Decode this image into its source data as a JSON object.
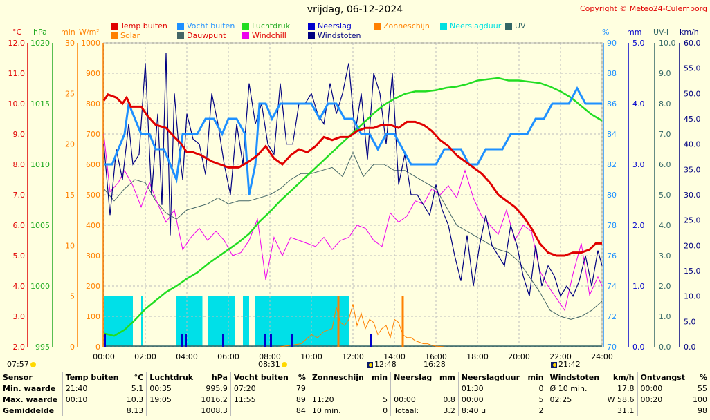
{
  "title": "vrijdag, 06-12-2024",
  "copyright": "Copyright © Meteo24-Culemborg",
  "units": {
    "celsius": "°C",
    "hpa": "hPa",
    "min": "min",
    "wm2": "W/m²",
    "pct": "%",
    "mm": "mm",
    "uvi": "UV-I",
    "kmh": "km/h"
  },
  "legend": [
    {
      "label": "Temp buiten",
      "color": "#e00000"
    },
    {
      "label": "Vocht buiten",
      "color": "#1e90ff"
    },
    {
      "label": "Luchtdruk",
      "color": "#22dd22"
    },
    {
      "label": "Neerslag",
      "color": "#0000cc"
    },
    {
      "label": "Zonneschijn",
      "color": "#ff8000"
    },
    {
      "label": "Neerslagduur",
      "color": "#00e0e0"
    },
    {
      "label": "UV",
      "color": "#336666"
    },
    {
      "label": "Solar",
      "color": "#ff8000"
    },
    {
      "label": "Dauwpunt",
      "color": "#446666"
    },
    {
      "label": "Windchill",
      "color": "#ee00ee"
    },
    {
      "label": "Windstoten",
      "color": "#000080"
    }
  ],
  "sun": {
    "sunrise": "08:31",
    "sunset": "16:28",
    "moonrise": "12:48",
    "moonset": "21:42",
    "dawn": "07:57"
  },
  "chart_data": {
    "type": "line",
    "x_label": "time",
    "x_ticks": [
      "00:00",
      "02:00",
      "04:00",
      "06:00",
      "08:00",
      "10:00",
      "12:00",
      "14:00",
      "16:00",
      "18:00",
      "20:00",
      "22:00",
      "24:00"
    ],
    "axes": {
      "temp": {
        "ticks": [
          "12.0",
          "11.0",
          "10.0",
          "9.0",
          "8.0",
          "7.0",
          "6.0",
          "5.0",
          "4.0",
          "3.0",
          "2.0"
        ],
        "range": [
          2,
          12
        ]
      },
      "pressure": {
        "ticks": [
          "1020",
          "1015",
          "1010",
          "1005",
          "1000",
          "995"
        ],
        "range": [
          995,
          1020
        ]
      },
      "minutes": {
        "ticks": [
          "30",
          "25",
          "20",
          "15",
          "10",
          "5",
          "0"
        ],
        "range": [
          0,
          30
        ]
      },
      "solar": {
        "ticks": [
          "1000",
          "900",
          "800",
          "700",
          "600",
          "500",
          "400",
          "300",
          "200",
          "100",
          "0"
        ],
        "range": [
          0,
          1000
        ]
      },
      "humidity": {
        "ticks": [
          "90",
          "88",
          "86",
          "84",
          "82",
          "80",
          "78",
          "76",
          "74",
          "72",
          "70"
        ],
        "range": [
          70,
          90
        ]
      },
      "rain_mm": {
        "ticks": [
          "5.0",
          "4.0",
          "3.0",
          "2.0",
          "1.0",
          "0.0"
        ],
        "range": [
          0,
          5
        ]
      },
      "uvi": {
        "ticks": [
          "10.0",
          "9.0",
          "8.0",
          "7.0",
          "6.0",
          "5.0",
          "4.0",
          "3.0",
          "2.0",
          "1.0",
          "0.0"
        ],
        "range": [
          0,
          10
        ]
      },
      "wind": {
        "ticks": [
          "60.0",
          "55.0",
          "50.0",
          "45.0",
          "40.0",
          "35.0",
          "30.0",
          "25.0",
          "20.0",
          "15.0",
          "10.0",
          "5.0",
          "0.0"
        ],
        "range": [
          0,
          60
        ]
      }
    },
    "series": [
      {
        "name": "Temp buiten",
        "axis": "temp",
        "color": "#e00000",
        "x": [
          0,
          0.2,
          0.6,
          0.9,
          1.1,
          1.3,
          1.8,
          2.1,
          2.5,
          3,
          3.4,
          3.7,
          4,
          4.3,
          4.7,
          5.2,
          5.6,
          6,
          6.5,
          7,
          7.4,
          7.8,
          8.2,
          8.6,
          9,
          9.4,
          9.8,
          10.2,
          10.6,
          11,
          11.4,
          11.8,
          12.2,
          12.6,
          13,
          13.4,
          13.8,
          14.2,
          14.6,
          15,
          15.4,
          15.8,
          16.2,
          16.6,
          17,
          17.4,
          17.8,
          18.2,
          18.6,
          19,
          19.4,
          19.8,
          20.2,
          20.6,
          21,
          21.4,
          21.8,
          22.2,
          22.6,
          23,
          23.4,
          23.7,
          24
        ],
        "y": [
          10.1,
          10.3,
          10.2,
          10.0,
          10.2,
          9.9,
          9.9,
          9.6,
          9.3,
          9.2,
          8.9,
          8.7,
          8.4,
          8.4,
          8.3,
          8.1,
          8.0,
          7.9,
          7.9,
          8.1,
          8.3,
          8.6,
          8.2,
          8.0,
          8.3,
          8.5,
          8.4,
          8.6,
          8.9,
          8.8,
          8.9,
          8.9,
          9.1,
          9.2,
          9.2,
          9.3,
          9.3,
          9.2,
          9.4,
          9.4,
          9.3,
          9.1,
          8.8,
          8.6,
          8.3,
          8.1,
          7.9,
          7.7,
          7.4,
          7.0,
          6.8,
          6.6,
          6.3,
          5.9,
          5.4,
          5.1,
          5.0,
          5.0,
          5.1,
          5.1,
          5.2,
          5.4,
          5.4
        ]
      },
      {
        "name": "Vocht buiten",
        "axis": "humidity",
        "color": "#1e90ff",
        "x": [
          0,
          0.4,
          0.7,
          1.0,
          1.2,
          1.5,
          1.8,
          2.2,
          2.5,
          2.9,
          3.2,
          3.5,
          3.8,
          4.1,
          4.5,
          4.9,
          5.3,
          5.7,
          6.0,
          6.4,
          6.8,
          7.0,
          7.3,
          7.5,
          7.8,
          8.1,
          8.5,
          8.8,
          9.2,
          9.6,
          10,
          10.4,
          10.8,
          11.2,
          11.6,
          12,
          12.4,
          12.8,
          13.2,
          13.6,
          14,
          14.4,
          14.8,
          15.2,
          15.6,
          16,
          16.4,
          16.8,
          17.2,
          17.6,
          18,
          18.4,
          18.8,
          19.2,
          19.6,
          20,
          20.4,
          20.8,
          21.2,
          21.6,
          22,
          22.4,
          22.8,
          23.2,
          23.6,
          24
        ],
        "y": [
          82,
          82,
          83,
          84,
          86,
          85,
          84,
          84,
          83,
          83,
          82,
          81,
          84,
          84,
          84,
          85,
          85,
          84,
          85,
          85,
          84,
          80,
          82,
          86,
          86,
          85,
          86,
          86,
          86,
          86,
          86,
          85,
          86,
          86,
          85,
          85,
          84,
          84,
          83,
          84,
          84,
          83,
          82,
          82,
          82,
          82,
          83,
          83,
          83,
          82,
          82,
          83,
          83,
          83,
          84,
          84,
          84,
          85,
          85,
          86,
          86,
          86,
          87,
          86,
          86,
          86
        ]
      },
      {
        "name": "Luchtdruk",
        "axis": "pressure",
        "color": "#22dd22",
        "x": [
          0,
          0.5,
          1,
          1.5,
          2,
          2.5,
          3,
          3.5,
          4,
          4.5,
          5,
          5.5,
          6,
          6.5,
          7,
          7.5,
          8,
          8.5,
          9,
          9.5,
          10,
          10.5,
          11,
          11.5,
          12,
          12.5,
          13,
          13.5,
          14,
          14.5,
          15,
          15.5,
          16,
          16.5,
          17,
          17.5,
          18,
          18.5,
          19,
          19.5,
          20,
          20.5,
          21,
          21.5,
          22,
          22.5,
          23,
          23.5,
          24
        ],
        "y": [
          996.1,
          995.9,
          996.4,
          997.2,
          998.1,
          998.8,
          999.5,
          1000,
          1000.6,
          1001.1,
          1001.8,
          1002.4,
          1003.0,
          1003.6,
          1004.3,
          1005.3,
          1006.1,
          1007.0,
          1007.8,
          1008.6,
          1009.4,
          1010.2,
          1011,
          1011.8,
          1012.6,
          1013.4,
          1014.2,
          1014.9,
          1015.4,
          1015.8,
          1016.0,
          1016.0,
          1016.1,
          1016.3,
          1016.4,
          1016.6,
          1016.9,
          1017.0,
          1017.1,
          1016.9,
          1016.9,
          1016.8,
          1016.7,
          1016.4,
          1016,
          1015.5,
          1014.8,
          1014.1,
          1013.6
        ]
      },
      {
        "name": "Dauwpunt",
        "axis": "temp",
        "color": "#446666",
        "x": [
          0,
          0.5,
          1,
          1.5,
          2,
          2.5,
          3,
          3.5,
          4,
          4.5,
          5,
          5.5,
          6,
          6.5,
          7,
          7.5,
          8,
          8.5,
          9,
          9.5,
          10,
          10.5,
          11,
          11.5,
          12,
          12.5,
          13,
          13.5,
          14,
          14.5,
          15,
          15.5,
          16,
          16.5,
          17,
          17.5,
          18,
          18.5,
          19,
          19.5,
          20,
          20.5,
          21,
          21.5,
          22,
          22.5,
          23,
          23.5,
          24
        ],
        "y": [
          7.2,
          6.8,
          7.2,
          7.5,
          7.4,
          6.8,
          6.4,
          6.2,
          6.5,
          6.6,
          6.7,
          6.9,
          6.7,
          6.8,
          6.8,
          6.9,
          7.0,
          7.2,
          7.5,
          7.7,
          7.7,
          7.8,
          7.9,
          7.6,
          8.4,
          7.6,
          8.0,
          8.0,
          7.8,
          7.8,
          7.6,
          7.4,
          7.2,
          6.6,
          6.0,
          5.8,
          5.6,
          5.4,
          5.2,
          5.1,
          4.8,
          4.3,
          3.8,
          3.2,
          3.0,
          2.9,
          3.0,
          3.2,
          3.5
        ]
      },
      {
        "name": "Windchill",
        "axis": "temp",
        "color": "#ee00ee",
        "x": [
          0,
          0.3,
          0.7,
          1,
          1.4,
          1.8,
          2.2,
          2.6,
          3,
          3.4,
          3.8,
          4.2,
          4.6,
          5,
          5.4,
          5.8,
          6.2,
          6.6,
          7,
          7.4,
          7.8,
          8.2,
          8.6,
          9,
          9.4,
          9.8,
          10.2,
          10.6,
          11,
          11.4,
          11.8,
          12.2,
          12.6,
          13,
          13.4,
          13.8,
          14.2,
          14.6,
          15,
          15.4,
          15.8,
          16.2,
          16.6,
          17,
          17.4,
          17.8,
          18.2,
          18.6,
          19,
          19.4,
          19.8,
          20.2,
          20.6,
          21,
          21.4,
          21.8,
          22.2,
          22.6,
          23,
          23.4,
          23.8,
          24
        ],
        "y": [
          9.0,
          7.1,
          7.4,
          7.8,
          7.3,
          6.6,
          7.4,
          6.7,
          6.1,
          6.5,
          5.2,
          5.6,
          5.9,
          5.5,
          5.8,
          5.5,
          5.0,
          5.1,
          5.5,
          6.2,
          4.2,
          5.6,
          5.0,
          5.6,
          5.5,
          5.4,
          5.3,
          5.6,
          5.2,
          5.5,
          5.6,
          6.0,
          5.9,
          5.5,
          5.3,
          6.4,
          6.1,
          6.3,
          6.8,
          6.7,
          7.2,
          7.0,
          7.3,
          6.9,
          7.8,
          6.9,
          6.3,
          6.0,
          5.7,
          6.5,
          5.5,
          6.0,
          5.8,
          4.5,
          4.0,
          3.6,
          3.2,
          4.4,
          5.4,
          3.7,
          4.3,
          4.0
        ]
      },
      {
        "name": "Windstoten",
        "axis": "wind",
        "color": "#000080",
        "x": [
          0,
          0.3,
          0.6,
          0.9,
          1.2,
          1.4,
          1.7,
          2.0,
          2.3,
          2.6,
          2.8,
          3.0,
          3.2,
          3.4,
          3.6,
          3.8,
          4.0,
          4.3,
          4.6,
          4.9,
          5.2,
          5.5,
          5.8,
          6.1,
          6.4,
          6.7,
          7.0,
          7.3,
          7.6,
          7.9,
          8.2,
          8.5,
          8.8,
          9.1,
          9.4,
          9.7,
          10,
          10.3,
          10.6,
          10.9,
          11.2,
          11.5,
          11.8,
          12.1,
          12.4,
          12.7,
          13,
          13.3,
          13.6,
          13.9,
          14.2,
          14.5,
          14.8,
          15.1,
          15.4,
          15.7,
          16,
          16.3,
          16.6,
          16.9,
          17.2,
          17.5,
          17.8,
          18.1,
          18.4,
          18.7,
          19,
          19.3,
          19.6,
          19.9,
          20.2,
          20.5,
          20.8,
          21.1,
          21.4,
          21.7,
          22,
          22.3,
          22.6,
          22.9,
          23.2,
          23.5,
          23.8,
          24
        ],
        "y": [
          40,
          26,
          39,
          33,
          44,
          36,
          38,
          56,
          30,
          46,
          28,
          58,
          22,
          50,
          40,
          33,
          46,
          41,
          40,
          34,
          50,
          44,
          36,
          30,
          44,
          36,
          52,
          44,
          48,
          40,
          38,
          52,
          40,
          40,
          48,
          48,
          50,
          46,
          44,
          52,
          46,
          50,
          56,
          42,
          50,
          37,
          54,
          50,
          40,
          54,
          32,
          38,
          30,
          30,
          28,
          26,
          32,
          27,
          24,
          18,
          13,
          22,
          12,
          20,
          26,
          20,
          18,
          16,
          24,
          20,
          14,
          10,
          20,
          12,
          16,
          14,
          10,
          12,
          10,
          13,
          18,
          12,
          19,
          16
        ]
      },
      {
        "name": "Solar",
        "axis": "solar",
        "color": "#ff8000",
        "x": [
          8.5,
          9,
          9.5,
          10,
          10.3,
          10.6,
          11,
          11.2,
          11.4,
          11.6,
          11.8,
          12,
          12.2,
          12.4,
          12.6,
          12.8,
          13,
          13.2,
          13.4,
          13.6,
          13.8,
          14,
          14.2,
          14.4,
          14.6,
          14.8,
          15,
          15.2,
          15.4,
          15.6,
          15.8,
          16,
          16.4
        ],
        "y": [
          0,
          5,
          10,
          40,
          30,
          50,
          60,
          130,
          80,
          70,
          90,
          140,
          70,
          110,
          60,
          90,
          80,
          40,
          60,
          70,
          30,
          90,
          80,
          40,
          30,
          30,
          20,
          15,
          10,
          10,
          5,
          2,
          0
        ]
      },
      {
        "name": "UV",
        "axis": "uvi",
        "color": "#336666",
        "x": [
          0,
          24
        ],
        "y": [
          0,
          0
        ]
      }
    ],
    "rain_duration_blocks": [
      [
        0,
        1.4
      ],
      [
        1.8,
        1.9
      ],
      [
        3.5,
        4.75
      ],
      [
        5.0,
        6.3
      ],
      [
        6.7,
        7.0
      ],
      [
        7.3,
        11.8
      ]
    ],
    "sunshine_bars": [
      11.3,
      14.4
    ],
    "rain_bars": [
      0.0,
      3.7,
      3.9,
      5.7,
      7.7,
      8.0,
      9.0,
      12.8
    ]
  },
  "stats": {
    "headers": [
      "Sensor",
      "Temp buiten",
      "°C",
      "Luchtdruk",
      "hPa",
      "Vocht buiten",
      "%",
      "Zonneschijn",
      "min",
      "Neerslag",
      "mm",
      "Neerslagduur",
      "min",
      "Windstoten",
      "km/h",
      "Ontvangst",
      "%"
    ],
    "rows": [
      [
        "Min. waarde",
        "21:40",
        "5.1",
        "00:35",
        "995.9",
        "07:20",
        "79",
        "",
        "",
        "",
        "",
        "01:30",
        "0",
        "Ø 10 min.",
        "17.8",
        "00:00",
        "55"
      ],
      [
        "Max. waarde",
        "00:10",
        "10.3",
        "19:05",
        "1016.2",
        "11:55",
        "89",
        "11:20",
        "5",
        "00:00",
        "0.8",
        "00:00",
        "5",
        "02:25",
        "W 58.6",
        "00:20",
        "100"
      ],
      [
        "Gemiddelde",
        "",
        "8.13",
        "",
        "1008.3",
        "",
        "84",
        "10 min.",
        "0",
        "Totaal:",
        "3.2",
        "8:40 u",
        "2",
        "",
        "31.1",
        "",
        "98"
      ]
    ]
  }
}
